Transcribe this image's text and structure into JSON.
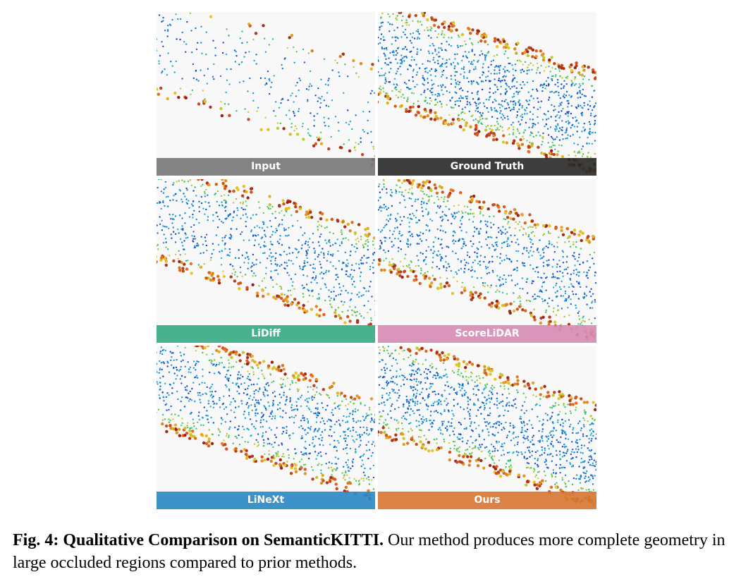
{
  "figure": {
    "panels": [
      {
        "label": "Input"
      },
      {
        "label": "Ground Truth"
      },
      {
        "label": "LiDiff"
      },
      {
        "label": "ScoreLiDAR"
      },
      {
        "label": "LiNeXt"
      },
      {
        "label": "Ours"
      }
    ],
    "caption": {
      "label": "Fig. 4:",
      "title": "Qualitative Comparison on SemanticKITTI.",
      "text": "Our method produces more complete geometry in large occluded regions compared to prior methods."
    }
  }
}
